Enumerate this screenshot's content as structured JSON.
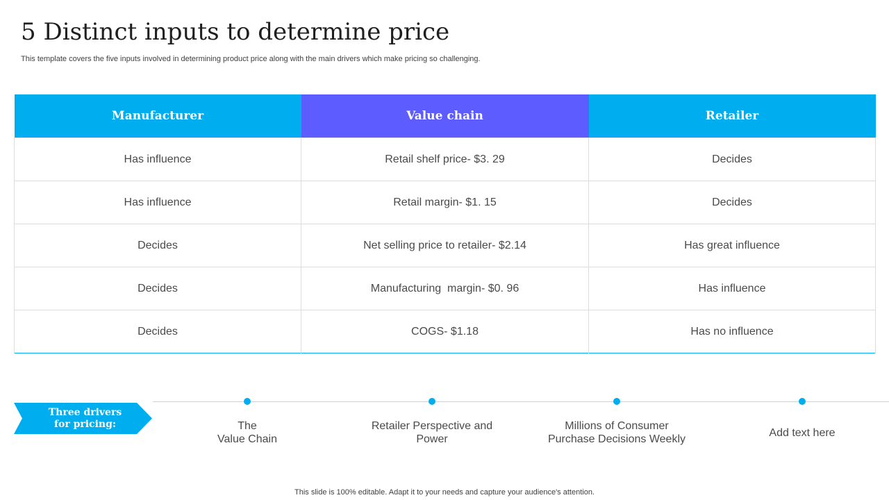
{
  "slide": {
    "title": "5 Distinct inputs to determine price",
    "subtitle": "This template covers the five inputs involved in determining product price along with the main drivers which make pricing so challenging.",
    "footer": "This slide is 100% editable. Adapt it to your needs and capture your audience's attention."
  },
  "table": {
    "headers": [
      "Manufacturer",
      "Value chain",
      "Retailer"
    ],
    "rows": [
      [
        "Has influence",
        "Retail shelf price- $3. 29",
        "Decides"
      ],
      [
        "Has influence",
        "Retail margin- $1. 15",
        "Decides"
      ],
      [
        "Decides",
        "Net selling price to retailer- $2.14",
        "Has great influence"
      ],
      [
        "Decides",
        "Manufacturing  margin- $0. 96",
        "Has influence"
      ],
      [
        "Decides",
        "COGS- $1.18",
        "Has no influence"
      ]
    ]
  },
  "drivers": {
    "badge": "Three drivers\nfor pricing:",
    "items": [
      "The\nValue Chain",
      "Retailer Perspective and\nPower",
      "Millions of Consumer\nPurchase Decisions Weekly",
      "Add text here"
    ]
  },
  "colors": {
    "accent_blue": "#00adef",
    "accent_purple": "#5c5cff"
  }
}
